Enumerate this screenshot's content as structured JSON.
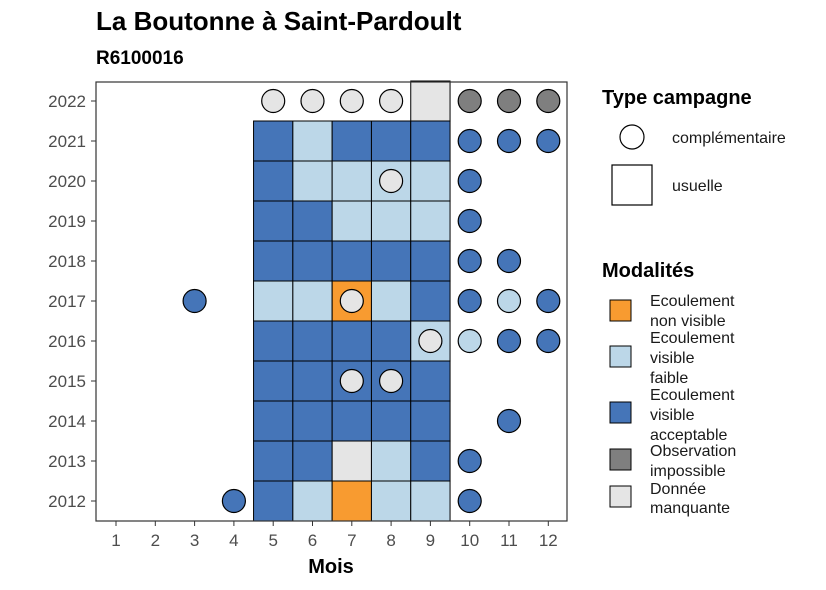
{
  "chart_data": {
    "type": "heatmap",
    "title": "La Boutonne à Saint-Pardoult",
    "subtitle": "R6100016",
    "xlabel": "Mois",
    "ylabel": "",
    "x_categories": [
      "1",
      "2",
      "3",
      "4",
      "5",
      "6",
      "7",
      "8",
      "9",
      "10",
      "11",
      "12"
    ],
    "y_categories": [
      "2012",
      "2013",
      "2014",
      "2015",
      "2016",
      "2017",
      "2018",
      "2019",
      "2020",
      "2021",
      "2022"
    ],
    "colors": {
      "Ecoulement non visible": "#f89b30",
      "Ecoulement visible faible": "#bcd7e8",
      "Ecoulement visible acceptable": "#4575b8",
      "Observation impossible": "#7f7f7f",
      "Donnée manquante": "#e5e5e5"
    },
    "legend_campagne": {
      "title": "Type campagne",
      "items": [
        {
          "label": "complémentaire",
          "shape": "circle"
        },
        {
          "label": "usuelle",
          "shape": "square"
        }
      ]
    },
    "legend_modalites": {
      "title": "Modalités",
      "items": [
        {
          "key": "Ecoulement non visible",
          "lines": [
            "Ecoulement",
            "non visible"
          ]
        },
        {
          "key": "Ecoulement visible faible",
          "lines": [
            "Ecoulement",
            "visible",
            "faible"
          ]
        },
        {
          "key": "Ecoulement visible acceptable",
          "lines": [
            "Ecoulement",
            "visible",
            "acceptable"
          ]
        },
        {
          "key": "Observation impossible",
          "lines": [
            "Observation",
            "impossible"
          ]
        },
        {
          "key": "Donnée manquante",
          "lines": [
            "Donnée",
            "manquante"
          ]
        }
      ]
    },
    "observations": [
      {
        "year": "2022",
        "month": 5,
        "campagne": "complémentaire",
        "modalite": "Donnée manquante"
      },
      {
        "year": "2022",
        "month": 6,
        "campagne": "complémentaire",
        "modalite": "Donnée manquante"
      },
      {
        "year": "2022",
        "month": 7,
        "campagne": "complémentaire",
        "modalite": "Donnée manquante"
      },
      {
        "year": "2022",
        "month": 8,
        "campagne": "complémentaire",
        "modalite": "Donnée manquante"
      },
      {
        "year": "2022",
        "month": 9,
        "campagne": "usuelle",
        "modalite": "Donnée manquante"
      },
      {
        "year": "2022",
        "month": 10,
        "campagne": "complémentaire",
        "modalite": "Observation impossible"
      },
      {
        "year": "2022",
        "month": 11,
        "campagne": "complémentaire",
        "modalite": "Observation impossible"
      },
      {
        "year": "2022",
        "month": 12,
        "campagne": "complémentaire",
        "modalite": "Observation impossible"
      },
      {
        "year": "2021",
        "month": 5,
        "campagne": "usuelle",
        "modalite": "Ecoulement visible acceptable"
      },
      {
        "year": "2021",
        "month": 6,
        "campagne": "usuelle",
        "modalite": "Ecoulement visible faible"
      },
      {
        "year": "2021",
        "month": 7,
        "campagne": "usuelle",
        "modalite": "Ecoulement visible acceptable"
      },
      {
        "year": "2021",
        "month": 8,
        "campagne": "usuelle",
        "modalite": "Ecoulement visible acceptable"
      },
      {
        "year": "2021",
        "month": 9,
        "campagne": "usuelle",
        "modalite": "Ecoulement visible acceptable"
      },
      {
        "year": "2021",
        "month": 10,
        "campagne": "complémentaire",
        "modalite": "Ecoulement visible acceptable"
      },
      {
        "year": "2021",
        "month": 11,
        "campagne": "complémentaire",
        "modalite": "Ecoulement visible acceptable"
      },
      {
        "year": "2021",
        "month": 12,
        "campagne": "complémentaire",
        "modalite": "Ecoulement visible acceptable"
      },
      {
        "year": "2020",
        "month": 5,
        "campagne": "usuelle",
        "modalite": "Ecoulement visible acceptable"
      },
      {
        "year": "2020",
        "month": 6,
        "campagne": "usuelle",
        "modalite": "Ecoulement visible faible"
      },
      {
        "year": "2020",
        "month": 7,
        "campagne": "usuelle",
        "modalite": "Ecoulement visible faible"
      },
      {
        "year": "2020",
        "month": 8,
        "campagne": "usuelle",
        "modalite": "Ecoulement visible faible"
      },
      {
        "year": "2020",
        "month": 8,
        "campagne": "complémentaire",
        "modalite": "Donnée manquante"
      },
      {
        "year": "2020",
        "month": 9,
        "campagne": "usuelle",
        "modalite": "Ecoulement visible faible"
      },
      {
        "year": "2020",
        "month": 10,
        "campagne": "complémentaire",
        "modalite": "Ecoulement visible acceptable"
      },
      {
        "year": "2019",
        "month": 5,
        "campagne": "usuelle",
        "modalite": "Ecoulement visible acceptable"
      },
      {
        "year": "2019",
        "month": 6,
        "campagne": "usuelle",
        "modalite": "Ecoulement visible acceptable"
      },
      {
        "year": "2019",
        "month": 7,
        "campagne": "usuelle",
        "modalite": "Ecoulement visible faible"
      },
      {
        "year": "2019",
        "month": 8,
        "campagne": "usuelle",
        "modalite": "Ecoulement visible faible"
      },
      {
        "year": "2019",
        "month": 9,
        "campagne": "usuelle",
        "modalite": "Ecoulement visible faible"
      },
      {
        "year": "2019",
        "month": 10,
        "campagne": "complémentaire",
        "modalite": "Ecoulement visible acceptable"
      },
      {
        "year": "2018",
        "month": 5,
        "campagne": "usuelle",
        "modalite": "Ecoulement visible acceptable"
      },
      {
        "year": "2018",
        "month": 6,
        "campagne": "usuelle",
        "modalite": "Ecoulement visible acceptable"
      },
      {
        "year": "2018",
        "month": 7,
        "campagne": "usuelle",
        "modalite": "Ecoulement visible acceptable"
      },
      {
        "year": "2018",
        "month": 8,
        "campagne": "usuelle",
        "modalite": "Ecoulement visible acceptable"
      },
      {
        "year": "2018",
        "month": 9,
        "campagne": "usuelle",
        "modalite": "Ecoulement visible acceptable"
      },
      {
        "year": "2018",
        "month": 10,
        "campagne": "complémentaire",
        "modalite": "Ecoulement visible acceptable"
      },
      {
        "year": "2018",
        "month": 11,
        "campagne": "complémentaire",
        "modalite": "Ecoulement visible acceptable"
      },
      {
        "year": "2017",
        "month": 3,
        "campagne": "complémentaire",
        "modalite": "Ecoulement visible acceptable"
      },
      {
        "year": "2017",
        "month": 5,
        "campagne": "usuelle",
        "modalite": "Ecoulement visible faible"
      },
      {
        "year": "2017",
        "month": 6,
        "campagne": "usuelle",
        "modalite": "Ecoulement visible faible"
      },
      {
        "year": "2017",
        "month": 7,
        "campagne": "usuelle",
        "modalite": "Ecoulement non visible"
      },
      {
        "year": "2017",
        "month": 7,
        "campagne": "complémentaire",
        "modalite": "Donnée manquante"
      },
      {
        "year": "2017",
        "month": 8,
        "campagne": "usuelle",
        "modalite": "Ecoulement visible faible"
      },
      {
        "year": "2017",
        "month": 9,
        "campagne": "usuelle",
        "modalite": "Ecoulement visible acceptable"
      },
      {
        "year": "2017",
        "month": 10,
        "campagne": "complémentaire",
        "modalite": "Ecoulement visible acceptable"
      },
      {
        "year": "2017",
        "month": 11,
        "campagne": "complémentaire",
        "modalite": "Ecoulement visible faible"
      },
      {
        "year": "2017",
        "month": 12,
        "campagne": "complémentaire",
        "modalite": "Ecoulement visible acceptable"
      },
      {
        "year": "2016",
        "month": 5,
        "campagne": "usuelle",
        "modalite": "Ecoulement visible acceptable"
      },
      {
        "year": "2016",
        "month": 6,
        "campagne": "usuelle",
        "modalite": "Ecoulement visible acceptable"
      },
      {
        "year": "2016",
        "month": 7,
        "campagne": "usuelle",
        "modalite": "Ecoulement visible acceptable"
      },
      {
        "year": "2016",
        "month": 8,
        "campagne": "usuelle",
        "modalite": "Ecoulement visible acceptable"
      },
      {
        "year": "2016",
        "month": 9,
        "campagne": "usuelle",
        "modalite": "Ecoulement visible faible"
      },
      {
        "year": "2016",
        "month": 9,
        "campagne": "complémentaire",
        "modalite": "Donnée manquante"
      },
      {
        "year": "2016",
        "month": 10,
        "campagne": "complémentaire",
        "modalite": "Ecoulement visible faible"
      },
      {
        "year": "2016",
        "month": 11,
        "campagne": "complémentaire",
        "modalite": "Ecoulement visible acceptable"
      },
      {
        "year": "2016",
        "month": 12,
        "campagne": "complémentaire",
        "modalite": "Ecoulement visible acceptable"
      },
      {
        "year": "2015",
        "month": 5,
        "campagne": "usuelle",
        "modalite": "Ecoulement visible acceptable"
      },
      {
        "year": "2015",
        "month": 6,
        "campagne": "usuelle",
        "modalite": "Ecoulement visible acceptable"
      },
      {
        "year": "2015",
        "month": 7,
        "campagne": "usuelle",
        "modalite": "Ecoulement visible acceptable"
      },
      {
        "year": "2015",
        "month": 7,
        "campagne": "complémentaire",
        "modalite": "Donnée manquante"
      },
      {
        "year": "2015",
        "month": 8,
        "campagne": "usuelle",
        "modalite": "Ecoulement visible acceptable"
      },
      {
        "year": "2015",
        "month": 8,
        "campagne": "complémentaire",
        "modalite": "Donnée manquante"
      },
      {
        "year": "2015",
        "month": 9,
        "campagne": "usuelle",
        "modalite": "Ecoulement visible acceptable"
      },
      {
        "year": "2014",
        "month": 5,
        "campagne": "usuelle",
        "modalite": "Ecoulement visible acceptable"
      },
      {
        "year": "2014",
        "month": 6,
        "campagne": "usuelle",
        "modalite": "Ecoulement visible acceptable"
      },
      {
        "year": "2014",
        "month": 7,
        "campagne": "usuelle",
        "modalite": "Ecoulement visible acceptable"
      },
      {
        "year": "2014",
        "month": 8,
        "campagne": "usuelle",
        "modalite": "Ecoulement visible acceptable"
      },
      {
        "year": "2014",
        "month": 9,
        "campagne": "usuelle",
        "modalite": "Ecoulement visible acceptable"
      },
      {
        "year": "2014",
        "month": 11,
        "campagne": "complémentaire",
        "modalite": "Ecoulement visible acceptable"
      },
      {
        "year": "2013",
        "month": 5,
        "campagne": "usuelle",
        "modalite": "Ecoulement visible acceptable"
      },
      {
        "year": "2013",
        "month": 6,
        "campagne": "usuelle",
        "modalite": "Ecoulement visible acceptable"
      },
      {
        "year": "2013",
        "month": 7,
        "campagne": "usuelle",
        "modalite": "Donnée manquante"
      },
      {
        "year": "2013",
        "month": 8,
        "campagne": "usuelle",
        "modalite": "Ecoulement visible faible"
      },
      {
        "year": "2013",
        "month": 9,
        "campagne": "usuelle",
        "modalite": "Ecoulement visible acceptable"
      },
      {
        "year": "2013",
        "month": 10,
        "campagne": "complémentaire",
        "modalite": "Ecoulement visible acceptable"
      },
      {
        "year": "2012",
        "month": 4,
        "campagne": "complémentaire",
        "modalite": "Ecoulement visible acceptable"
      },
      {
        "year": "2012",
        "month": 5,
        "campagne": "usuelle",
        "modalite": "Ecoulement visible acceptable"
      },
      {
        "year": "2012",
        "month": 6,
        "campagne": "usuelle",
        "modalite": "Ecoulement visible faible"
      },
      {
        "year": "2012",
        "month": 7,
        "campagne": "usuelle",
        "modalite": "Ecoulement non visible"
      },
      {
        "year": "2012",
        "month": 8,
        "campagne": "usuelle",
        "modalite": "Ecoulement visible faible"
      },
      {
        "year": "2012",
        "month": 9,
        "campagne": "usuelle",
        "modalite": "Ecoulement visible faible"
      },
      {
        "year": "2012",
        "month": 10,
        "campagne": "complémentaire",
        "modalite": "Ecoulement visible acceptable"
      }
    ]
  }
}
